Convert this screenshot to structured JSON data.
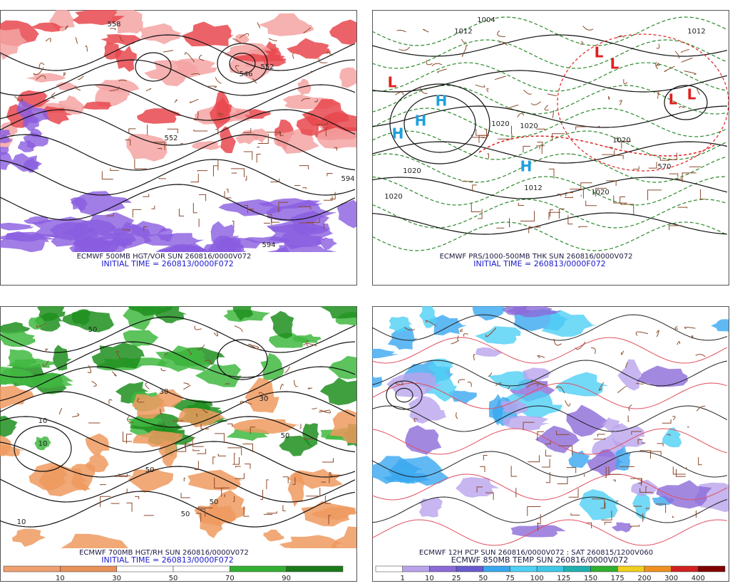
{
  "panels": [
    {
      "kind": "hgt-vor",
      "caption": "ECMWF 500MB HGT/VOR SUN 260816/0000V072",
      "initial_time": "INITIAL TIME = 260813/0000F072",
      "labels": [
        "558",
        "552",
        "546",
        "552",
        "594",
        "594"
      ]
    },
    {
      "kind": "pressure",
      "caption": "ECMWF PRS/1000-500MB THK SUN 260816/0000V072",
      "initial_time": "INITIAL TIME = 260813/0000F072",
      "labels": [
        "1004",
        "1012",
        "1012",
        "1020",
        "1020",
        "1020",
        "1012",
        "1020",
        "1020",
        "1020",
        "570",
        "H",
        "H",
        "H",
        "H",
        "L",
        "L",
        "L",
        "L",
        "L"
      ]
    },
    {
      "kind": "hgt-rh",
      "caption": "ECMWF 700MB HGT/RH SUN 260816/0000V072",
      "initial_time": "INITIAL TIME = 260813/0000F072",
      "labels": [
        "50",
        "10",
        "30",
        "50",
        "10",
        "50",
        "50",
        "30",
        "50",
        "10"
      ]
    },
    {
      "kind": "pcp-temp",
      "caption": "ECMWF 12H PCP SUN 260816/0000V072 : SAT 260815/1200V060",
      "initial_time": "ECMWF 850MB TEMP SUN 260816/0000V072",
      "labels": []
    }
  ],
  "colorbars": [
    {
      "labels": [
        10,
        30,
        50,
        70,
        90
      ],
      "colors": [
        "#f0a070",
        "#e8915a",
        "#ffffff",
        "#ffffff",
        "#33b033",
        "#1a7a1a"
      ]
    },
    {
      "labels": [
        1,
        10,
        25,
        50,
        75,
        100,
        125,
        150,
        175,
        200,
        300,
        400
      ],
      "colors": [
        "#ffffff",
        "#b9a4ec",
        "#8c6ad8",
        "#6a5ad0",
        "#39a7f0",
        "#4fd0f5",
        "#40c8e8",
        "#20b0b0",
        "#30b030",
        "#f0d020",
        "#f09020",
        "#d02020",
        "#800000"
      ]
    }
  ]
}
